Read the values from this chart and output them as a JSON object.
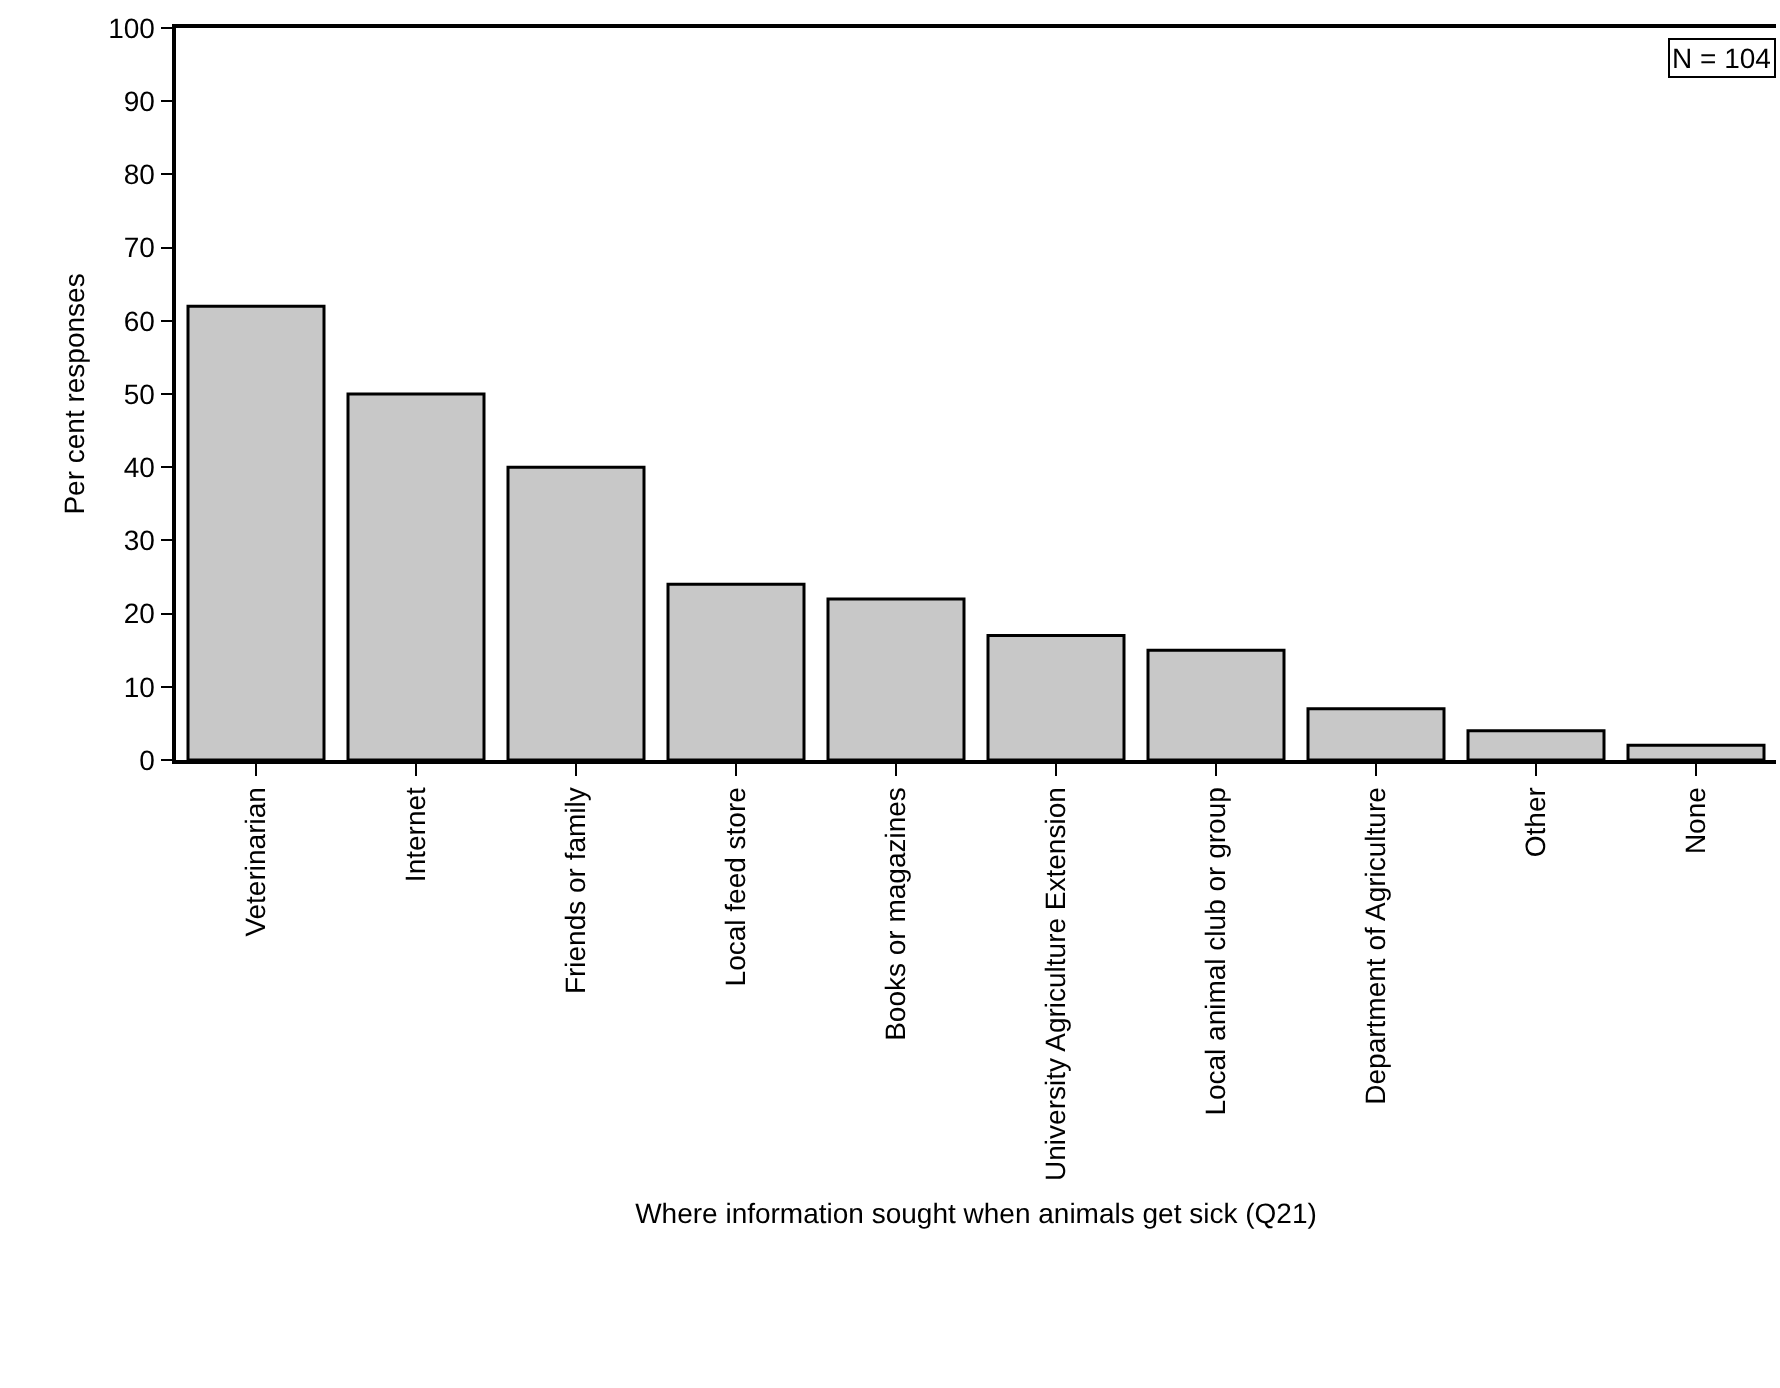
{
  "chart_data": {
    "type": "bar",
    "xlabel": "Where information sought when animals get sick (Q21)",
    "ylabel": "Per cent responses",
    "categories": [
      "Veterinarian",
      "Internet",
      "Friends or family",
      "Local feed store",
      "Books or magazines",
      "University Agriculture Extension",
      "Local animal club or group",
      "Department of Agriculture",
      "Other",
      "None"
    ],
    "values": [
      62,
      50,
      40,
      24,
      22,
      17,
      15,
      7,
      4,
      2
    ],
    "color": "#c8c8c8",
    "ylim": [
      0,
      100
    ],
    "yticks": [
      0,
      10,
      20,
      30,
      40,
      50,
      60,
      70,
      80,
      90,
      100
    ],
    "grid": false,
    "annotations": [
      "N = 104"
    ]
  }
}
